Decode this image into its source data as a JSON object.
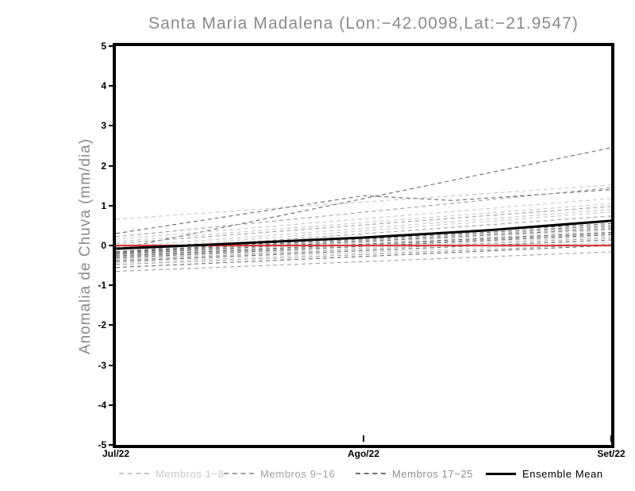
{
  "chart_data": {
    "type": "line",
    "title": "Santa Maria Madalena (Lon:−42.0098,Lat:−21.9547)",
    "ylabel": "Anomalia de Chuva (mm/dia)",
    "xlabel": "",
    "ylim": [
      -5,
      5
    ],
    "grid": false,
    "frame_color": "#000000",
    "y_tick_values": [
      5,
      4,
      3,
      2,
      1,
      0,
      -1,
      -2,
      -3,
      -4,
      -5
    ],
    "y_tick_labels": [
      "5",
      "4",
      "3",
      "2",
      "1",
      "0",
      "-1",
      "-2",
      "-3",
      "-4",
      "-5"
    ],
    "x_tick_labels": [
      "Jul/22",
      "Ago/22",
      "Set/22"
    ],
    "x_tick_positions": [
      0,
      0.5,
      1
    ],
    "zero_line": {
      "value": 0,
      "color": "#d83a3a"
    },
    "ensemble_mean": {
      "name": "Ensemble Mean",
      "color": "#000000",
      "points": [
        [
          0,
          -0.08
        ],
        [
          0.15,
          0.0
        ],
        [
          0.5,
          0.2
        ],
        [
          0.75,
          0.38
        ],
        [
          1,
          0.62
        ]
      ]
    },
    "member_groups": [
      {
        "name": "Membros 1−8",
        "color": "#c7c7c7"
      },
      {
        "name": "Membros 9−16",
        "color": "#9f9f9f"
      },
      {
        "name": "Membros 17−25",
        "color": "#686868"
      }
    ],
    "members": [
      {
        "group": 0,
        "points": [
          [
            0,
            0.66
          ],
          [
            1,
            1.52
          ]
        ]
      },
      {
        "group": 2,
        "points": [
          [
            0,
            0.3
          ],
          [
            0.5,
            1.25
          ],
          [
            0.68,
            1.13
          ],
          [
            1,
            1.4
          ]
        ]
      },
      {
        "group": 2,
        "points": [
          [
            0,
            -0.1
          ],
          [
            1,
            2.45
          ]
        ]
      },
      {
        "group": 1,
        "points": [
          [
            0,
            0.22
          ],
          [
            1,
            1.45
          ]
        ]
      },
      {
        "group": 0,
        "points": [
          [
            0,
            0.16
          ],
          [
            1,
            1.18
          ]
        ]
      },
      {
        "group": 0,
        "points": [
          [
            0,
            0.1
          ],
          [
            1,
            1.05
          ]
        ]
      },
      {
        "group": 1,
        "points": [
          [
            0,
            0.05
          ],
          [
            1,
            0.98
          ]
        ]
      },
      {
        "group": 0,
        "points": [
          [
            0,
            -0.04
          ],
          [
            1,
            0.9
          ]
        ]
      },
      {
        "group": 0,
        "points": [
          [
            0,
            -0.1
          ],
          [
            1,
            0.84
          ]
        ]
      },
      {
        "group": 1,
        "points": [
          [
            0,
            -0.15
          ],
          [
            1,
            0.74
          ]
        ]
      },
      {
        "group": 2,
        "points": [
          [
            0,
            -0.16
          ],
          [
            1,
            0.55
          ]
        ]
      },
      {
        "group": 2,
        "points": [
          [
            0,
            -0.18
          ],
          [
            1,
            0.5
          ]
        ]
      },
      {
        "group": 1,
        "points": [
          [
            0,
            -0.2
          ],
          [
            1,
            0.46
          ]
        ]
      },
      {
        "group": 2,
        "points": [
          [
            0,
            -0.22
          ],
          [
            1,
            0.42
          ]
        ]
      },
      {
        "group": 0,
        "points": [
          [
            0,
            -0.24
          ],
          [
            1,
            0.38
          ]
        ]
      },
      {
        "group": 2,
        "points": [
          [
            0,
            -0.26
          ],
          [
            1,
            0.33
          ]
        ]
      },
      {
        "group": 1,
        "points": [
          [
            0,
            -0.28
          ],
          [
            1,
            0.3
          ]
        ]
      },
      {
        "group": 2,
        "points": [
          [
            0,
            -0.31
          ],
          [
            1,
            0.27
          ]
        ]
      },
      {
        "group": 0,
        "points": [
          [
            0,
            -0.34
          ],
          [
            1,
            0.23
          ]
        ]
      },
      {
        "group": 1,
        "points": [
          [
            0,
            -0.37
          ],
          [
            1,
            0.19
          ]
        ]
      },
      {
        "group": 2,
        "points": [
          [
            0,
            -0.4
          ],
          [
            1,
            0.14
          ]
        ]
      },
      {
        "group": 0,
        "points": [
          [
            0,
            -0.44
          ],
          [
            1,
            0.08
          ]
        ]
      },
      {
        "group": 1,
        "points": [
          [
            0,
            -0.48
          ],
          [
            1,
            0.03
          ]
        ]
      },
      {
        "group": 2,
        "points": [
          [
            0,
            -0.55
          ],
          [
            1,
            0.0
          ]
        ]
      },
      {
        "group": 1,
        "points": [
          [
            0,
            -0.65
          ],
          [
            1,
            -0.16
          ]
        ]
      }
    ]
  },
  "legend": {
    "items": [
      {
        "label": "Membros 1−8",
        "text_color": "#c7c7c7",
        "line_color": "#c7c7c7",
        "style": "dashed"
      },
      {
        "label": "Membros 9−16",
        "text_color": "#9f9f9f",
        "line_color": "#9f9f9f",
        "style": "dashed"
      },
      {
        "label": "Membros 17−25",
        "text_color": "#8f8f8f",
        "line_color": "#6f6f6f",
        "style": "dashed"
      },
      {
        "label": "Ensemble Mean",
        "text_color": "#000000",
        "line_color": "#000000",
        "style": "solid"
      }
    ]
  }
}
